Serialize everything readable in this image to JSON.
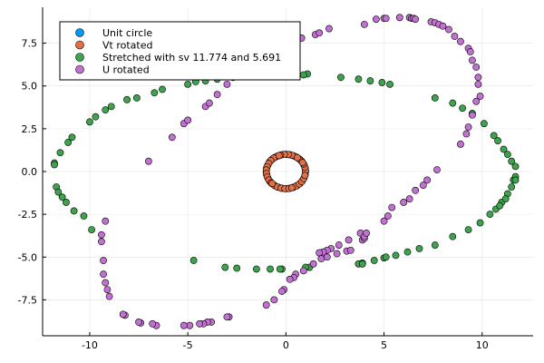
{
  "chart_data": {
    "type": "scatter",
    "title": "",
    "xlabel": "",
    "ylabel": "",
    "xlim": [
      -12.4,
      12.6
    ],
    "ylim": [
      -9.6,
      9.6
    ],
    "xticks": [
      -10,
      -5,
      0,
      5,
      10
    ],
    "xtick_labels": [
      "-10",
      "-5",
      "0",
      "5",
      "10"
    ],
    "yticks": [
      -7.5,
      -5.0,
      -2.5,
      0.0,
      2.5,
      5.0,
      7.5
    ],
    "ytick_labels": [
      "-7.5",
      "-5.0",
      "-2.5",
      "0.0",
      "2.5",
      "5.0",
      "7.5"
    ],
    "grid": true,
    "legend_position": "top-left",
    "series": [
      {
        "name": "Unit circle",
        "color": "#009af9",
        "points": [
          [
            1.0,
            0.0
          ],
          [
            0.98,
            0.2
          ],
          [
            0.92,
            0.38
          ],
          [
            0.83,
            0.56
          ],
          [
            0.71,
            0.71
          ],
          [
            0.56,
            0.83
          ],
          [
            0.38,
            0.92
          ],
          [
            0.2,
            0.98
          ],
          [
            0.0,
            1.0
          ],
          [
            -0.2,
            0.98
          ],
          [
            -0.38,
            0.92
          ],
          [
            -0.56,
            0.83
          ],
          [
            -0.71,
            0.71
          ],
          [
            -0.83,
            0.56
          ],
          [
            -0.92,
            0.38
          ],
          [
            -0.98,
            0.2
          ],
          [
            -1.0,
            0.0
          ],
          [
            -0.98,
            -0.2
          ],
          [
            -0.92,
            -0.38
          ],
          [
            -0.83,
            -0.56
          ],
          [
            -0.71,
            -0.71
          ],
          [
            -0.56,
            -0.83
          ],
          [
            -0.38,
            -0.92
          ],
          [
            -0.2,
            -0.98
          ],
          [
            0.0,
            -1.0
          ],
          [
            0.2,
            -0.98
          ],
          [
            0.38,
            -0.92
          ],
          [
            0.56,
            -0.83
          ],
          [
            0.71,
            -0.71
          ],
          [
            0.83,
            -0.56
          ],
          [
            0.92,
            -0.38
          ],
          [
            0.98,
            -0.2
          ]
        ]
      },
      {
        "name": "Vt rotated",
        "color": "#e26f46",
        "points": [
          [
            1.0,
            0.05
          ],
          [
            0.97,
            0.25
          ],
          [
            0.9,
            0.44
          ],
          [
            0.79,
            0.62
          ],
          [
            0.66,
            0.75
          ],
          [
            0.5,
            0.87
          ],
          [
            0.31,
            0.95
          ],
          [
            0.12,
            0.99
          ],
          [
            -0.08,
            1.0
          ],
          [
            -0.28,
            0.96
          ],
          [
            -0.46,
            0.89
          ],
          [
            -0.63,
            0.78
          ],
          [
            -0.77,
            0.64
          ],
          [
            -0.88,
            0.47
          ],
          [
            -0.96,
            0.28
          ],
          [
            -1.0,
            0.09
          ],
          [
            -0.99,
            -0.12
          ],
          [
            -0.95,
            -0.31
          ],
          [
            -0.87,
            -0.5
          ],
          [
            -0.75,
            -0.66
          ],
          [
            -0.61,
            -0.79
          ],
          [
            -0.44,
            -0.9
          ],
          [
            -0.25,
            -0.97
          ],
          [
            -0.05,
            -1.0
          ],
          [
            0.15,
            -0.99
          ],
          [
            0.34,
            -0.94
          ],
          [
            0.52,
            -0.85
          ],
          [
            0.68,
            -0.73
          ],
          [
            0.81,
            -0.59
          ],
          [
            0.91,
            -0.41
          ],
          [
            0.97,
            -0.23
          ],
          [
            0.58,
            0.81
          ],
          [
            -0.7,
            -0.7
          ],
          [
            0.85,
            0.52
          ],
          [
            -0.35,
            0.93
          ],
          [
            0.3,
            -0.95
          ]
        ]
      },
      {
        "name": "Stretched with sv 11.774 and 5.691",
        "color": "#3da44d",
        "points": [
          [
            11.7,
            0.3
          ],
          [
            11.6,
            -0.5
          ],
          [
            11.5,
            -0.9
          ],
          [
            11.3,
            -1.3
          ],
          [
            11.0,
            -1.8
          ],
          [
            10.7,
            -2.2
          ],
          [
            10.4,
            -2.5
          ],
          [
            9.9,
            -3.0
          ],
          [
            9.3,
            -3.4
          ],
          [
            8.5,
            -3.8
          ],
          [
            7.6,
            -4.3
          ],
          [
            6.8,
            -4.5
          ],
          [
            6.2,
            -4.7
          ],
          [
            5.6,
            -4.9
          ],
          [
            5.0,
            -5.05
          ],
          [
            4.5,
            -5.2
          ],
          [
            3.9,
            -5.35
          ],
          [
            3.7,
            -5.4
          ],
          [
            1.2,
            -5.6
          ],
          [
            1.0,
            -5.6
          ],
          [
            -0.2,
            -5.7
          ],
          [
            -0.3,
            -5.7
          ],
          [
            -0.8,
            -5.7
          ],
          [
            -1.5,
            -5.7
          ],
          [
            -2.5,
            -5.65
          ],
          [
            -3.1,
            -5.6
          ],
          [
            -4.7,
            -5.2
          ],
          [
            11.7,
            -0.3
          ],
          [
            11.7,
            -0.5
          ],
          [
            11.5,
            0.6
          ],
          [
            11.3,
            1.0
          ],
          [
            11.1,
            1.3
          ],
          [
            10.8,
            1.8
          ],
          [
            10.6,
            2.1
          ],
          [
            10.1,
            2.8
          ],
          [
            9.5,
            3.4
          ],
          [
            9.0,
            3.7
          ],
          [
            8.5,
            4.0
          ],
          [
            7.6,
            4.3
          ],
          [
            5.3,
            5.1
          ],
          [
            4.9,
            5.2
          ],
          [
            4.3,
            5.3
          ],
          [
            3.7,
            5.4
          ],
          [
            2.8,
            5.5
          ],
          [
            1.1,
            5.7
          ],
          [
            0.9,
            5.65
          ],
          [
            -0.8,
            5.65
          ],
          [
            -1.8,
            5.75
          ],
          [
            -2.4,
            5.8
          ],
          [
            -2.7,
            5.5
          ],
          [
            -3.5,
            5.4
          ],
          [
            -4.1,
            5.3
          ],
          [
            -4.6,
            5.25
          ],
          [
            -5.0,
            5.1
          ],
          [
            -6.3,
            4.8
          ],
          [
            -6.7,
            4.6
          ],
          [
            -7.6,
            4.3
          ],
          [
            -8.1,
            4.2
          ],
          [
            -8.9,
            3.8
          ],
          [
            -9.2,
            3.6
          ],
          [
            -9.7,
            3.2
          ],
          [
            -10.0,
            2.9
          ],
          [
            -10.9,
            2.0
          ],
          [
            -11.1,
            1.7
          ],
          [
            -11.5,
            1.1
          ],
          [
            -11.8,
            0.5
          ],
          [
            -11.8,
            0.4
          ],
          [
            -11.7,
            -0.9
          ],
          [
            -11.6,
            -1.2
          ],
          [
            -11.4,
            -1.5
          ],
          [
            -11.2,
            -1.8
          ],
          [
            -10.8,
            -2.3
          ],
          [
            -9.9,
            -3.4
          ],
          [
            -10.3,
            -2.6
          ],
          [
            3.9,
            -5.4
          ],
          [
            5.1,
            -5.0
          ],
          [
            11.2,
            -1.6
          ],
          [
            10.9,
            -2.0
          ]
        ]
      },
      {
        "name": "U rotated",
        "color": "#c271d2",
        "points": [
          [
            4.6,
            8.9
          ],
          [
            5.0,
            8.95
          ],
          [
            5.1,
            8.95
          ],
          [
            5.8,
            9.0
          ],
          [
            6.3,
            9.0
          ],
          [
            6.4,
            8.95
          ],
          [
            6.5,
            8.95
          ],
          [
            6.6,
            8.9
          ],
          [
            7.4,
            8.75
          ],
          [
            7.6,
            8.7
          ],
          [
            7.8,
            8.6
          ],
          [
            8.0,
            8.5
          ],
          [
            8.3,
            8.3
          ],
          [
            8.6,
            7.9
          ],
          [
            8.9,
            7.6
          ],
          [
            9.3,
            7.2
          ],
          [
            9.4,
            7.0
          ],
          [
            9.5,
            6.5
          ],
          [
            9.7,
            6.1
          ],
          [
            9.8,
            5.5
          ],
          [
            9.8,
            5.1
          ],
          [
            9.9,
            4.4
          ],
          [
            9.7,
            4.1
          ],
          [
            9.5,
            3.3
          ],
          [
            9.3,
            2.6
          ],
          [
            9.2,
            2.2
          ],
          [
            8.9,
            1.6
          ],
          [
            7.7,
            0.1
          ],
          [
            7.2,
            -0.5
          ],
          [
            7.0,
            -0.8
          ],
          [
            6.6,
            -1.1
          ],
          [
            6.3,
            -1.6
          ],
          [
            6.0,
            -1.8
          ],
          [
            5.4,
            -2.1
          ],
          [
            5.2,
            -2.6
          ],
          [
            5.0,
            -2.9
          ],
          [
            3.8,
            -3.6
          ],
          [
            3.2,
            -4.0
          ],
          [
            2.7,
            -4.3
          ],
          [
            2.3,
            -4.5
          ],
          [
            2.1,
            -4.6
          ],
          [
            1.9,
            -4.7
          ],
          [
            1.7,
            -4.75
          ],
          [
            3.1,
            -4.65
          ],
          [
            3.3,
            -4.6
          ],
          [
            3.9,
            -4.0
          ],
          [
            4.0,
            -3.9
          ],
          [
            4.0,
            -3.8
          ],
          [
            4.1,
            -3.6
          ],
          [
            2.6,
            -4.8
          ],
          [
            2.1,
            -5.0
          ],
          [
            1.8,
            -5.1
          ],
          [
            1.4,
            -5.4
          ],
          [
            0.9,
            -5.8
          ],
          [
            0.5,
            -6.0
          ],
          [
            0.4,
            -6.2
          ],
          [
            0.2,
            -6.3
          ],
          [
            -0.1,
            -6.9
          ],
          [
            -0.2,
            -7.0
          ],
          [
            -0.6,
            -7.5
          ],
          [
            -1.0,
            -7.8
          ],
          [
            -2.9,
            -8.5
          ],
          [
            -3.0,
            -8.5
          ],
          [
            -3.8,
            -8.8
          ],
          [
            -4.0,
            -8.8
          ],
          [
            -4.2,
            -8.9
          ],
          [
            -4.4,
            -8.9
          ],
          [
            -4.9,
            -9.0
          ],
          [
            -5.2,
            -9.0
          ],
          [
            -6.6,
            -9.0
          ],
          [
            -6.8,
            -8.9
          ],
          [
            -7.4,
            -8.85
          ],
          [
            -7.5,
            -8.8
          ],
          [
            -8.2,
            -8.4
          ],
          [
            -8.3,
            -8.35
          ],
          [
            -9.0,
            -7.3
          ],
          [
            -9.1,
            -6.9
          ],
          [
            -9.2,
            -6.5
          ],
          [
            -9.3,
            -6.0
          ],
          [
            -9.3,
            -5.2
          ],
          [
            -9.4,
            -4.1
          ],
          [
            -9.4,
            -3.7
          ],
          [
            -9.2,
            -2.9
          ],
          [
            -7.0,
            0.6
          ],
          [
            -5.8,
            2.0
          ],
          [
            -5.2,
            2.8
          ],
          [
            -5.0,
            3.0
          ],
          [
            -4.1,
            3.8
          ],
          [
            -3.9,
            4.0
          ],
          [
            -3.5,
            4.5
          ],
          [
            -3.0,
            5.1
          ],
          [
            -2.0,
            6.5
          ],
          [
            -1.6,
            6.8
          ],
          [
            -1.5,
            7.0
          ],
          [
            -1.2,
            7.3
          ],
          [
            -0.7,
            7.4
          ],
          [
            -0.4,
            7.6
          ],
          [
            0.4,
            7.6
          ],
          [
            0.8,
            7.8
          ],
          [
            1.5,
            8.0
          ],
          [
            1.7,
            8.1
          ],
          [
            2.2,
            8.35
          ],
          [
            4.0,
            8.6
          ]
        ]
      }
    ]
  }
}
